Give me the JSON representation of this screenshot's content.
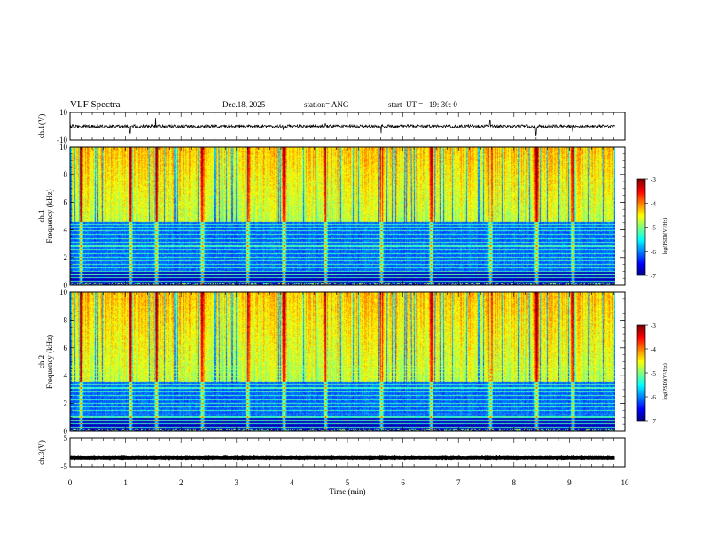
{
  "header": {
    "title": "VLF Spectra",
    "date": "Dec.18, 2025",
    "station": "station= ANG",
    "start": "start  UT =   19: 30: 0"
  },
  "chart_data": [
    {
      "type": "line",
      "name": "ch1-voltage",
      "ylabel": "ch.1(V)",
      "ylim": [
        -10,
        10
      ],
      "yticks": [
        "10",
        "-10"
      ],
      "baseline": 0
    },
    {
      "type": "heatmap",
      "name": "ch1-spectrogram",
      "ylabel": "ch.1\nFrequency (kHz)",
      "ylim": [
        0,
        10
      ],
      "yticks": [
        "0",
        "2",
        "4",
        "6",
        "8",
        "10"
      ],
      "colorbar": {
        "label": "log(PSD)(V²/Hz)",
        "ticks": [
          "-3",
          "-4",
          "-5",
          "-6",
          "-7"
        ]
      }
    },
    {
      "type": "heatmap",
      "name": "ch2-spectrogram",
      "ylabel": "ch.2\nFrequency (kHz)",
      "ylim": [
        0,
        10
      ],
      "yticks": [
        "0",
        "2",
        "4",
        "6",
        "8",
        "10"
      ],
      "colorbar": {
        "label": "log(PSD)(V²/Hz)",
        "ticks": [
          "-3",
          "-4",
          "-5",
          "-6",
          "-7"
        ]
      }
    },
    {
      "type": "line",
      "name": "ch3-voltage",
      "ylabel": "ch.3(V)",
      "ylim": [
        -5,
        5
      ],
      "yticks": [
        "5",
        "-5"
      ],
      "baseline": -1.8
    }
  ],
  "xaxis": {
    "label": "Time (min)",
    "xlim": [
      0,
      10
    ],
    "ticks": [
      "0",
      "1",
      "2",
      "3",
      "4",
      "5",
      "6",
      "7",
      "8",
      "9",
      "10"
    ],
    "data_end": 9.82
  },
  "colors": {
    "axis": "#000000",
    "trace": "#000000"
  }
}
